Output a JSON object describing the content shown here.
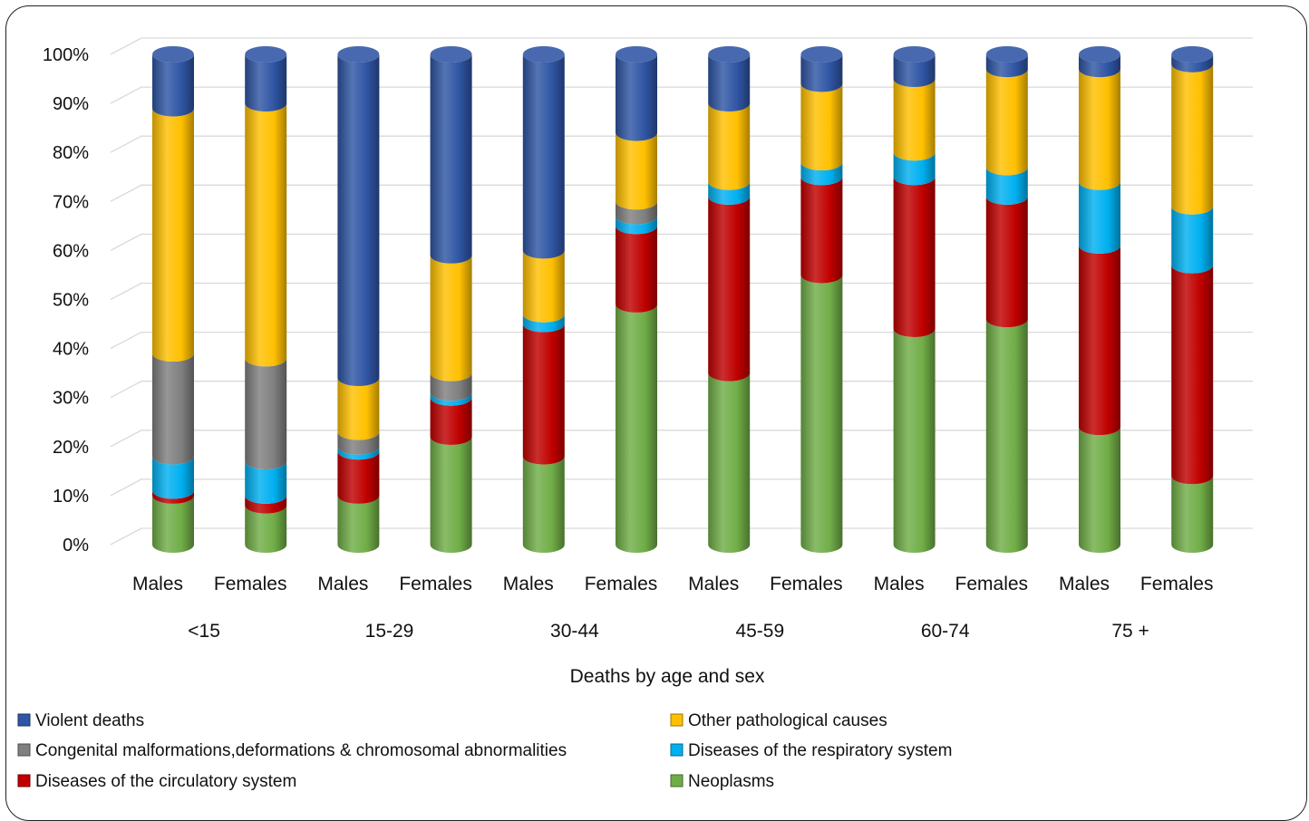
{
  "chart_data": {
    "type": "bar",
    "stacked": true,
    "percent": true,
    "style": "3d-cylinder",
    "title": "",
    "xlabel": "Deaths by age and sex",
    "ylabel": "",
    "ylim": [
      0,
      100
    ],
    "y_ticks": [
      "0%",
      "10%",
      "20%",
      "30%",
      "40%",
      "50%",
      "60%",
      "70%",
      "80%",
      "90%",
      "100%"
    ],
    "grid": true,
    "legend_position": "bottom",
    "groups": [
      "<15",
      "15-29",
      "30-44",
      "45-59",
      "60-74",
      "75 +"
    ],
    "categories": [
      "Males",
      "Females",
      "Males",
      "Females",
      "Males",
      "Females",
      "Males",
      "Females",
      "Males",
      "Females",
      "Males",
      "Females"
    ],
    "series": [
      {
        "name": "Neoplasms",
        "color": "#70ad47",
        "values": [
          10,
          8,
          10,
          22,
          18,
          49,
          35,
          55,
          44,
          46,
          24,
          14
        ]
      },
      {
        "name": "Diseases of the circulatory system",
        "color": "#c00000",
        "values": [
          1,
          2,
          9,
          8,
          27,
          16,
          36,
          20,
          31,
          25,
          37,
          43
        ]
      },
      {
        "name": "Diseases of the respiratory system",
        "color": "#00b0f0",
        "values": [
          7,
          7,
          1,
          1,
          2,
          2,
          3,
          3,
          5,
          6,
          13,
          12
        ]
      },
      {
        "name": "Congenital malformations,deformations & chromosomal abnormalities",
        "color": "#7f7f7f",
        "values": [
          21,
          21,
          3,
          4,
          0,
          3,
          0,
          0,
          0,
          0,
          0,
          0
        ]
      },
      {
        "name": "Other pathological causes",
        "color": "#ffc000",
        "values": [
          50,
          52,
          11,
          24,
          13,
          14,
          16,
          16,
          15,
          20,
          23,
          29
        ]
      },
      {
        "name": "Violent deaths",
        "color": "#2f55a4",
        "values": [
          11,
          10,
          66,
          41,
          40,
          16,
          10,
          6,
          5,
          3,
          3,
          2
        ]
      }
    ],
    "legend_order": [
      "Violent deaths",
      "Other pathological causes",
      "Congenital malformations,deformations & chromosomal abnormalities",
      "Diseases of the respiratory system",
      "Diseases of the circulatory system",
      "Neoplasms"
    ]
  }
}
